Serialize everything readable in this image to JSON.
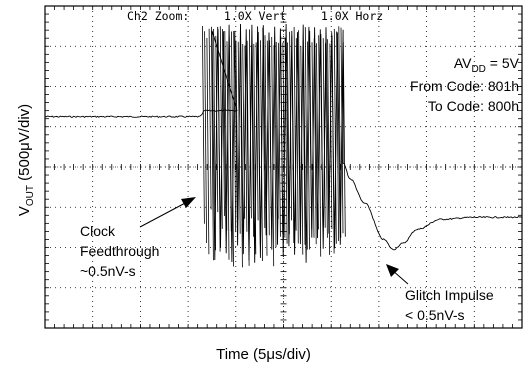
{
  "chart_data": {
    "type": "line",
    "header": "Ch2 Zoom:     1.0X Vert     1.0X Horz",
    "xlabel": "Time (5μs/div)",
    "ylabel": {
      "prefix": "V",
      "sub": "OUT",
      "suffix": " (500μV/div)"
    },
    "grid": true,
    "x_divisions": 10,
    "y_divisions": 8,
    "info": {
      "avdd": {
        "prefix": "AV",
        "sub": "DD",
        "suffix": " = 5V"
      },
      "from_code": "From Code: 801h",
      "to_code": "To Code: 800h"
    },
    "annotations": {
      "clock_feedthrough": [
        "Clock",
        "Feedthrough",
        "~0.5nV-s"
      ],
      "glitch_impulse": [
        "Glitch Impulse",
        "< 0.5nV-s"
      ]
    },
    "series": [
      {
        "x_divisions": [
          0,
          3.2,
          3.25,
          3.35,
          3.9,
          4.05,
          6.25,
          6.4,
          6.7,
          7.1,
          7.3,
          7.5,
          7.8,
          8.3,
          9.0,
          10.0
        ],
        "y_divisions": [
          2.75,
          2.75,
          2.75,
          2.6,
          2.6,
          2.6,
          3.9,
          4.3,
          4.9,
          5.8,
          6.05,
          5.9,
          5.55,
          5.3,
          5.25,
          5.25
        ]
      }
    ]
  }
}
